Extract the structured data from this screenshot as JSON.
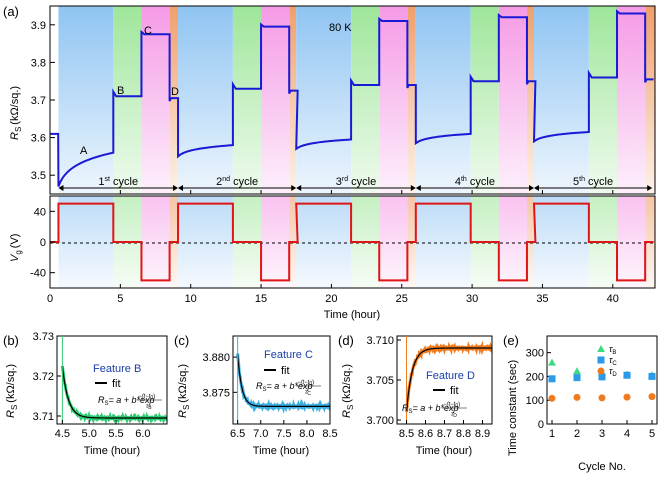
{
  "colors": {
    "blue_region": "#a9d2f5",
    "green_region": "#a8e6a0",
    "pink_region": "#f7a6e8",
    "orange_region": "#f0a878",
    "rs_line": "#1a1ad6",
    "vg_line": "#e01515",
    "fitB": "#2ecc71",
    "fitC": "#3aaee0",
    "fitD": "#f07a1e",
    "tau_B": "#3ddc84",
    "tau_C": "#2b9ae8",
    "tau_D": "#f07a1e"
  },
  "panel_a": {
    "letter": "(a)",
    "temp_label": "80 K",
    "point_labels": [
      "A",
      "B",
      "C",
      "D"
    ],
    "top_ylabel": "R",
    "top_ylabel_sub": "S",
    "top_ylabel_units": "(kΩ/sq.)",
    "bottom_ylabel": "V",
    "bottom_ylabel_sub": "g",
    "bottom_ylabel_units": "(V)",
    "xlabel": "Time (hour)",
    "cycles": [
      {
        "n": "1",
        "sup": "st",
        "word": " cycle"
      },
      {
        "n": "2",
        "sup": "nd",
        "word": " cycle"
      },
      {
        "n": "3",
        "sup": "rd",
        "word": " cycle"
      },
      {
        "n": "4",
        "sup": "th",
        "word": " cycle"
      },
      {
        "n": "5",
        "sup": "th",
        "word": " cycle"
      }
    ]
  },
  "panel_b": {
    "letter": "(b)",
    "feature": "Feature B",
    "legend": "fit",
    "ylabel": "R",
    "ylabel_sub": "S",
    "ylabel_units": "(kΩ/sq.)",
    "xlabel": "Time (hour)",
    "eq_lhs": "R",
    "eq_lhs_sub": "S",
    "eq_rhs": "= a + b*exp",
    "eq_num": "−(t−t",
    "eq_num_sub": "0",
    "eq_num_end": ")",
    "eq_den": "τ",
    "eq_den_sub": "B"
  },
  "panel_c": {
    "letter": "(c)",
    "feature": "Feature C",
    "legend": "fit",
    "ylabel": "R",
    "ylabel_sub": "S",
    "ylabel_units": "(kΩ/sq.)",
    "xlabel": "Time (hour)",
    "eq_lhs": "R",
    "eq_lhs_sub": "S",
    "eq_rhs": "= a + b*exp",
    "eq_num": "−(t−t",
    "eq_num_sub": "0",
    "eq_num_end": ")",
    "eq_den": "τ",
    "eq_den_sub": "C"
  },
  "panel_d": {
    "letter": "(d)",
    "feature": "Feature D",
    "legend": "fit",
    "ylabel": "R",
    "ylabel_sub": "S",
    "ylabel_units": "(kΩ/sq.)",
    "xlabel": "Time (hour)",
    "eq_lhs": "R",
    "eq_lhs_sub": "S",
    "eq_rhs": "= a + b*exp",
    "eq_num": "−(t−t",
    "eq_num_sub": "0",
    "eq_num_end": ")",
    "eq_den": "τ",
    "eq_den_sub": "D"
  },
  "panel_e": {
    "letter": "(e)",
    "ylabel": "Time constant (sec)",
    "xlabel": "Cycle No.",
    "legend": [
      {
        "sym": "τ",
        "sub": "B"
      },
      {
        "sym": "τ",
        "sub": "C"
      },
      {
        "sym": "τ",
        "sub": "D"
      }
    ]
  },
  "chart_data": [
    {
      "id": "a_top",
      "type": "line",
      "xlim": [
        0,
        43
      ],
      "ylim": [
        3.45,
        3.95
      ],
      "xticks": [
        0,
        5,
        10,
        15,
        20,
        25,
        30,
        35,
        40
      ],
      "yticks": [
        "3.5",
        "3.6",
        "3.7",
        "3.8",
        "3.9"
      ],
      "regions": [
        {
          "color": "blue",
          "start": [
            0.6,
            9.1,
            17.5,
            26.0,
            34.4
          ]
        },
        {
          "color": "green",
          "start": [
            4.5,
            13.0,
            21.4,
            29.9,
            38.3
          ]
        },
        {
          "color": "pink",
          "start": [
            6.5,
            15.0,
            23.4,
            31.9,
            40.3
          ]
        },
        {
          "color": "orange",
          "start": [
            8.5,
            17.0,
            25.4,
            33.9,
            42.3
          ]
        }
      ],
      "cycle_boundaries": [
        0.6,
        9.1,
        17.5,
        26.0,
        34.4,
        42.8
      ],
      "levels": {
        "A_start": [
          3.47,
          3.55,
          3.57,
          3.585,
          3.59
        ],
        "A_end": [
          3.56,
          3.58,
          3.595,
          3.61,
          3.615
        ],
        "B": [
          3.71,
          3.73,
          3.74,
          3.75,
          3.76
        ],
        "C": [
          3.875,
          3.895,
          3.91,
          3.92,
          3.93
        ],
        "D": [
          3.705,
          3.725,
          3.74,
          3.75,
          3.755
        ]
      },
      "initial_level": 3.61
    },
    {
      "id": "a_bottom",
      "type": "line",
      "xlim": [
        0,
        43
      ],
      "ylim": [
        -60,
        60
      ],
      "yticks": [
        -40,
        0,
        40
      ],
      "vg_sequence": [
        {
          "level": 50,
          "duration": 3.9
        },
        {
          "level": 0,
          "duration": 2.0
        },
        {
          "level": -50,
          "duration": 2.0
        },
        {
          "level": 0,
          "duration": 0.6
        }
      ],
      "cycle_starts": [
        0.6,
        9.1,
        17.5,
        26.0,
        34.4
      ]
    },
    {
      "id": "b",
      "type": "line",
      "xlim": [
        4.4,
        6.45
      ],
      "ylim": [
        3.708,
        3.73
      ],
      "yticks": [
        "3.73",
        "3.72",
        "3.71"
      ],
      "xticks": [
        "4.5",
        "5.0",
        "5.5",
        "6.0"
      ],
      "t0": 4.5,
      "a": 3.7095,
      "b": 0.013,
      "tau_hours": 0.11
    },
    {
      "id": "c",
      "type": "line",
      "xlim": [
        6.4,
        8.5
      ],
      "ylim": [
        3.8705,
        3.883
      ],
      "yticks": [
        "3.880",
        "3.875"
      ],
      "xticks": [
        "6.5",
        "7.0",
        "7.5",
        "8.0",
        "8.5"
      ],
      "t0": 6.5,
      "a": 3.873,
      "b": 0.0075,
      "tau_hours": 0.09
    },
    {
      "id": "d",
      "type": "line",
      "xlim": [
        8.45,
        8.95
      ],
      "ylim": [
        3.6995,
        3.7105
      ],
      "yticks": [
        "3.710",
        "3.705",
        "3.700"
      ],
      "xticks": [
        "8.5",
        "8.6",
        "8.7",
        "8.8",
        "8.9"
      ],
      "t0": 8.5,
      "a": 3.709,
      "b": -0.008,
      "tau_hours": 0.03
    },
    {
      "id": "e",
      "type": "scatter",
      "xlim": [
        0.8,
        5.2
      ],
      "ylim": [
        0,
        370
      ],
      "yticks": [
        0,
        100,
        200,
        300
      ],
      "xticks": [
        1,
        2,
        3,
        4,
        5
      ],
      "series": [
        {
          "name": "τB",
          "marker": "triangle",
          "x": [
            1,
            2,
            3,
            4,
            5
          ],
          "y": [
            258,
            222,
            215,
            208,
            205
          ]
        },
        {
          "name": "τC",
          "marker": "square",
          "x": [
            1,
            2,
            3,
            4,
            5
          ],
          "y": [
            190,
            195,
            198,
            205,
            200
          ]
        },
        {
          "name": "τD",
          "marker": "circle",
          "x": [
            1,
            2,
            3,
            4,
            5
          ],
          "y": [
            108,
            112,
            110,
            113,
            115
          ]
        }
      ]
    }
  ]
}
